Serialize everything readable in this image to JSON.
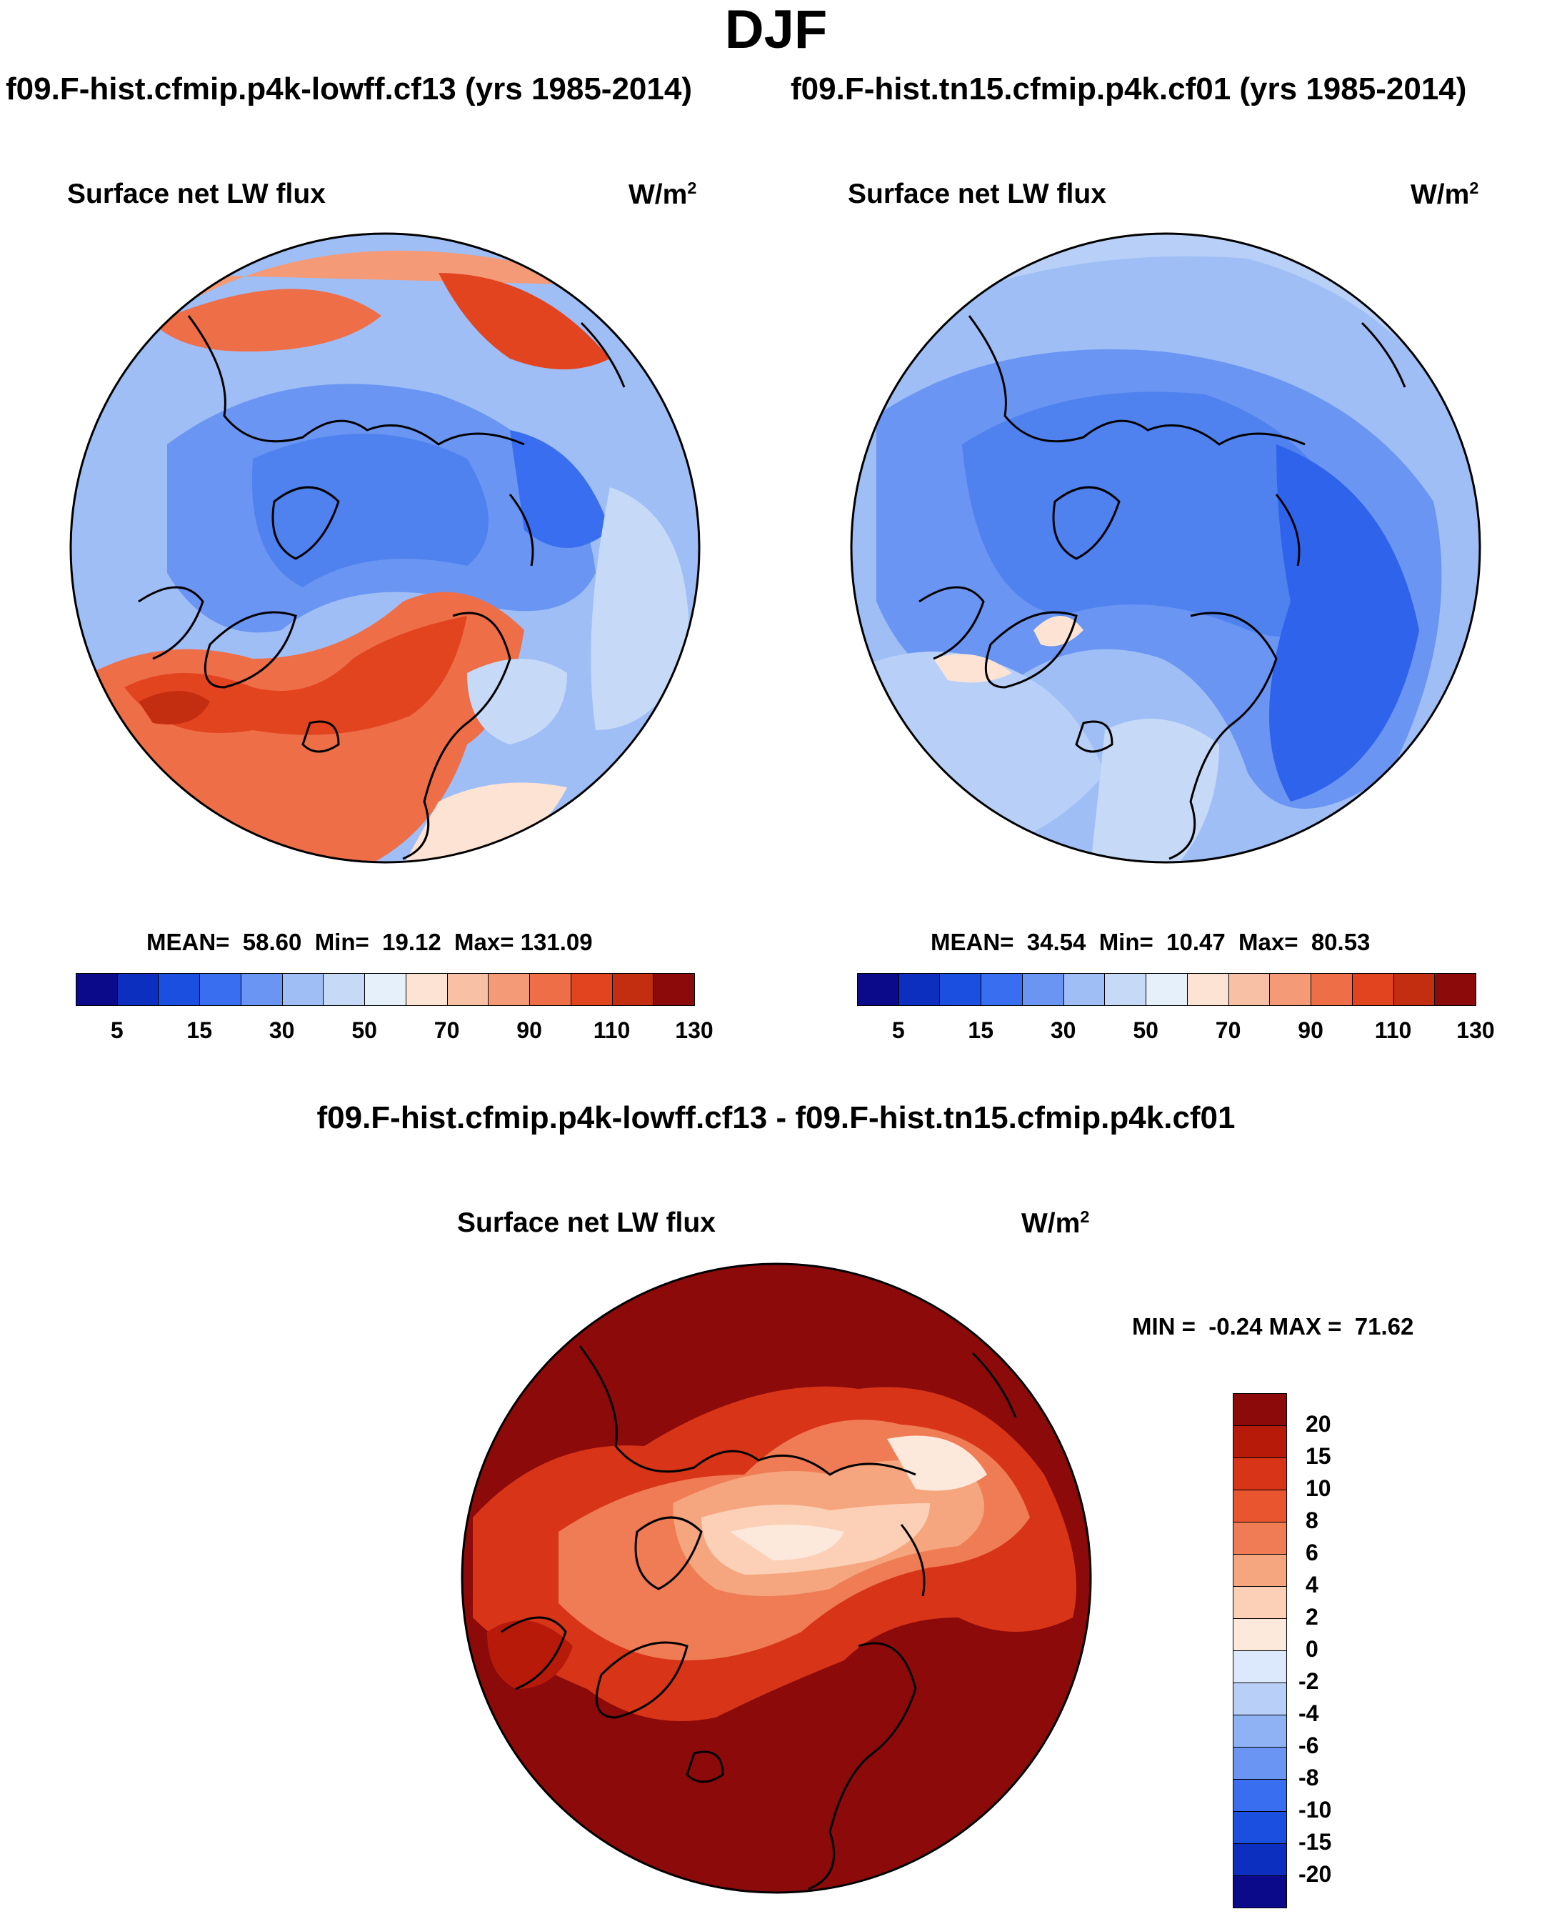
{
  "header": {
    "title": "DJF",
    "left_case": "f09.F-hist.cfmip.p4k-lowff.cf13 (yrs 1985-2014)",
    "right_case": "f09.F-hist.tn15.cfmip.p4k.cf01 (yrs 1985-2014)",
    "diff_case": "f09.F-hist.cfmip.p4k-lowff.cf13 - f09.F-hist.tn15.cfmip.p4k.cf01"
  },
  "panels": {
    "left": {
      "variable": "Surface net LW flux",
      "units": "W/m",
      "units_exp": "2",
      "stats": "MEAN=  58.60  Min=  19.12  Max= 131.09"
    },
    "right": {
      "variable": "Surface net LW flux",
      "units": "W/m",
      "units_exp": "2",
      "stats": "MEAN=  34.54  Min=  10.47  Max=  80.53"
    },
    "diff": {
      "variable": "Surface net LW flux",
      "units": "W/m",
      "units_exp": "2",
      "stats": "MIN =  -0.24 MAX =  71.62"
    }
  },
  "colorbars": {
    "abs_colors": [
      "#0a0a8a",
      "#0c2fc0",
      "#1a4fe0",
      "#3a6ef0",
      "#6a95f2",
      "#9fbef6",
      "#c6daf8",
      "#e6f0fb",
      "#fde3d3",
      "#f8c0a4",
      "#f49a76",
      "#ee6e48",
      "#e34420",
      "#c42e10",
      "#8c0a0a"
    ],
    "abs_ticks": [
      "5",
      "15",
      "30",
      "50",
      "70",
      "90",
      "110",
      "130"
    ],
    "diff_colors": [
      "#8c0a0a",
      "#b81a0a",
      "#d83418",
      "#e8552e",
      "#ef7c54",
      "#f5a67e",
      "#fbd0b6",
      "#fde8dc",
      "#dce8fb",
      "#b8d0f8",
      "#8fb2f4",
      "#6a95f2",
      "#3a6ef0",
      "#1a4fe0",
      "#0c2fc0",
      "#0a0a8a"
    ],
    "diff_ticks": [
      "20",
      "15",
      "10",
      "8",
      "6",
      "4",
      "2",
      "0",
      "-2",
      "-4",
      "-6",
      "-8",
      "-10",
      "-15",
      "-20"
    ]
  },
  "maps": {
    "left_palette": {
      "ocean_cold": "#6a95f2",
      "arctic": "#4f82ee",
      "ocean_warm": "#e85a30",
      "land_warm": "#c42e10",
      "mid": "#9fbef6"
    },
    "right_palette": {
      "ocean_cold": "#3a6ef0",
      "arctic": "#2f63ec",
      "mid": "#7aa2f3",
      "light": "#b8d0f8"
    },
    "diff_palette": {
      "base": "#8c0a0a",
      "mid": "#d83418",
      "light": "#f5a67e",
      "pale": "#fde8dc"
    }
  }
}
